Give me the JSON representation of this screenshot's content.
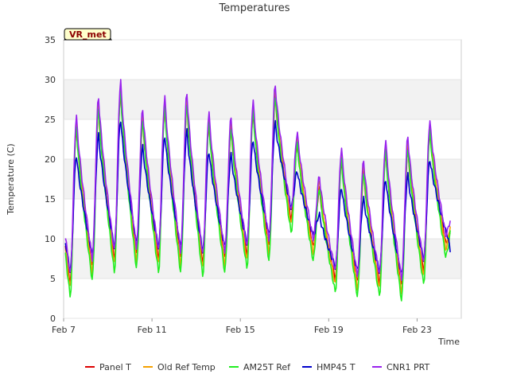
{
  "chart_data": {
    "type": "line",
    "title": "Temperatures",
    "xlabel": "Time",
    "ylabel": "Temperature (C)",
    "site_badge": "VR_met",
    "xlim": [
      "2024-02-07",
      "2024-02-25"
    ],
    "ylim": [
      0,
      35
    ],
    "yticks": [
      0,
      5,
      10,
      15,
      20,
      25,
      30,
      35
    ],
    "xticks": [
      {
        "date": "2024-02-07",
        "label": "Feb 7"
      },
      {
        "date": "2024-02-11",
        "label": "Feb 11"
      },
      {
        "date": "2024-02-15",
        "label": "Feb 15"
      },
      {
        "date": "2024-02-19",
        "label": "Feb 19"
      },
      {
        "date": "2024-02-23",
        "label": "Feb 23"
      }
    ],
    "grid": "horizontal bands",
    "legend_position": "bottom",
    "daily": [
      {
        "date": "2024-02-07",
        "min": 3.5,
        "max": 24.5
      },
      {
        "date": "2024-02-08",
        "min": 5.5,
        "max": 27.0
      },
      {
        "date": "2024-02-09",
        "min": 6.5,
        "max": 29.0
      },
      {
        "date": "2024-02-10",
        "min": 7.0,
        "max": 25.5
      },
      {
        "date": "2024-02-11",
        "min": 6.5,
        "max": 27.0
      },
      {
        "date": "2024-02-12",
        "min": 6.5,
        "max": 27.5
      },
      {
        "date": "2024-02-13",
        "min": 6.0,
        "max": 25.0
      },
      {
        "date": "2024-02-14",
        "min": 6.5,
        "max": 24.5
      },
      {
        "date": "2024-02-15",
        "min": 7.0,
        "max": 26.5
      },
      {
        "date": "2024-02-16",
        "min": 8.0,
        "max": 28.5
      },
      {
        "date": "2024-02-17",
        "min": 11.5,
        "max": 22.5
      },
      {
        "date": "2024-02-18",
        "min": 8.0,
        "max": 17.0
      },
      {
        "date": "2024-02-19",
        "min": 4.0,
        "max": 20.5
      },
      {
        "date": "2024-02-20",
        "min": 3.5,
        "max": 19.0
      },
      {
        "date": "2024-02-21",
        "min": 3.5,
        "max": 21.5
      },
      {
        "date": "2024-02-22",
        "min": 3.0,
        "max": 22.0
      },
      {
        "date": "2024-02-23",
        "min": 5.0,
        "max": 24.0
      },
      {
        "date": "2024-02-24",
        "min": 8.5,
        "max": 12.0
      }
    ],
    "series": [
      {
        "name": "Panel T",
        "color": "#dd0000",
        "offset_min": 1.0,
        "offset_max": -0.8
      },
      {
        "name": "Old Ref Temp",
        "color": "#f5a000",
        "offset_min": 0.3,
        "offset_max": 0.3
      },
      {
        "name": "AM25T Ref",
        "color": "#22ee22",
        "offset_min": -0.7,
        "offset_max": -0.6
      },
      {
        "name": "HMP45 T",
        "color": "#0000cc",
        "offset_min": 2.5,
        "offset_max": -4.0
      },
      {
        "name": "CNR1 PRT",
        "color": "#9922ee",
        "offset_min": 2.0,
        "offset_max": 0.8
      }
    ]
  }
}
